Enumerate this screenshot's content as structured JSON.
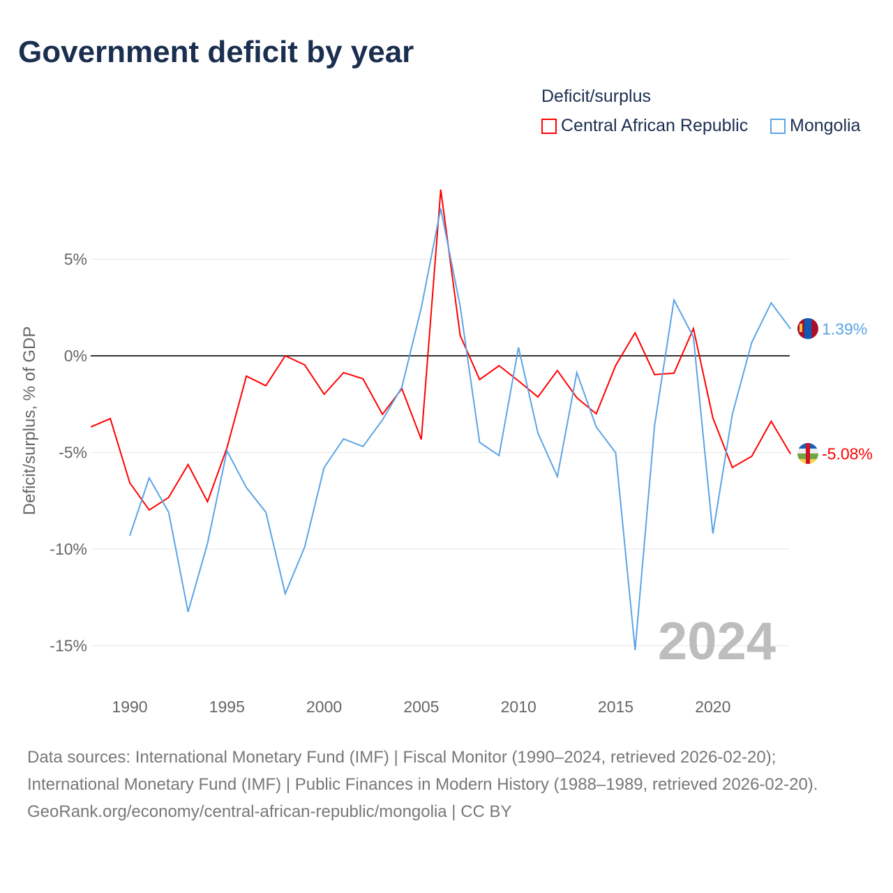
{
  "title": "Government deficit by year",
  "legend": {
    "title": "Deficit/surplus"
  },
  "footer": {
    "sources": "Data sources: International Monetary Fund (IMF) | Fiscal Monitor (1990–2024, retrieved 2026-02-20); International Monetary Fund (IMF) | Public Finances in Modern History (1988–1989, retrieved 2026-02-20).",
    "link": "GeoRank.org/economy/central-african-republic/mongolia | CC BY"
  },
  "chart_data": {
    "type": "line",
    "title": "Government deficit by year",
    "ylabel": "Deficit/surplus, % of GDP",
    "xlabel": "",
    "xlim": [
      1988,
      2024
    ],
    "ylim": [
      -17,
      9
    ],
    "x_ticks": [
      1990,
      1995,
      2000,
      2005,
      2010,
      2015,
      2020
    ],
    "y_ticks": [
      {
        "v": 5,
        "label": "5%"
      },
      {
        "v": 0,
        "label": "0%"
      },
      {
        "v": -5,
        "label": "-5%"
      },
      {
        "v": -10,
        "label": "-10%"
      },
      {
        "v": -15,
        "label": "-15%"
      }
    ],
    "year_label": "2024",
    "legend_position": "top-right",
    "series": [
      {
        "name": "Central African Republic",
        "color": "#ff0000",
        "start": 1988,
        "end_label": "-5.08%",
        "values": [
          -3.68,
          -3.25,
          -6.57,
          -7.98,
          -7.33,
          -5.63,
          -7.55,
          -4.77,
          -1.05,
          -1.55,
          0,
          -0.47,
          -1.99,
          -0.87,
          -1.19,
          -3.03,
          -1.7,
          -4.33,
          8.6,
          1.05,
          -1.23,
          -0.51,
          -1.3,
          -2.13,
          -0.76,
          -2.17,
          -3.0,
          -0.5,
          1.19,
          -0.97,
          -0.9,
          1.41,
          -3.21,
          -5.78,
          -5.2,
          -3.39,
          -5.08
        ]
      },
      {
        "name": "Mongolia",
        "color": "#5ba4e6",
        "start": 1990,
        "end_label": "1.39%",
        "values": [
          -9.31,
          -6.32,
          -8.09,
          -13.25,
          -9.71,
          -4.91,
          -6.82,
          -8.09,
          -12.31,
          -9.89,
          -5.78,
          -4.3,
          -4.69,
          -3.32,
          -1.62,
          2.49,
          7.62,
          2.56,
          -4.48,
          -5.16,
          0.43,
          -4.0,
          -6.25,
          -0.87,
          -3.68,
          -5.02,
          -15.23,
          -3.61,
          2.89,
          0.97,
          -9.2,
          -3.03,
          0.69,
          2.74,
          1.39
        ]
      }
    ]
  }
}
